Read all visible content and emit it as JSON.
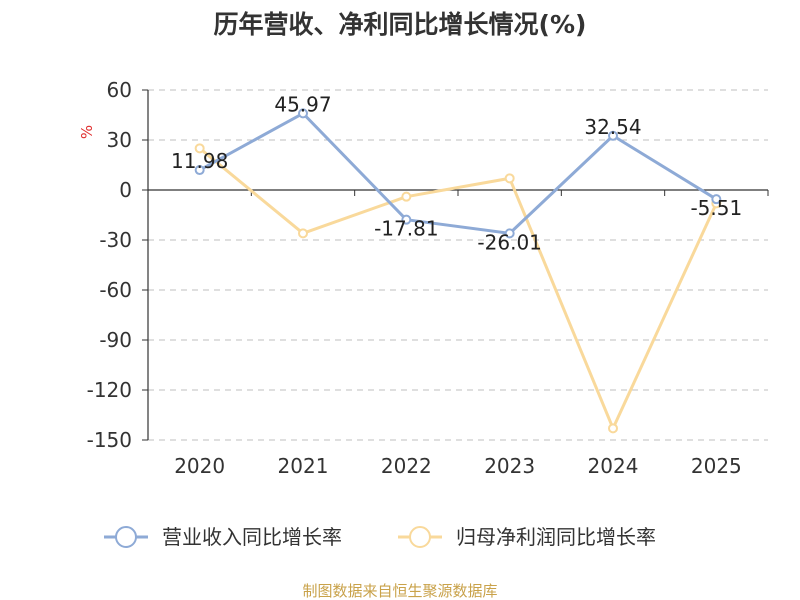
{
  "chart_data": {
    "type": "line",
    "title": "历年营收、净利同比增长情况(%)",
    "ylabel": "%",
    "xlabel": "",
    "categories": [
      "2020",
      "2021",
      "2022",
      "2023",
      "2024",
      "2025"
    ],
    "ylim": [
      -150,
      60
    ],
    "yticks": [
      60,
      30,
      0,
      -30,
      -60,
      -90,
      -120,
      -150
    ],
    "grid": true,
    "legend_position": "bottom",
    "series": [
      {
        "name": "营业收入同比增长率",
        "color": "#8eaad6",
        "values": [
          11.98,
          45.97,
          -17.81,
          -26.01,
          32.54,
          -5.51
        ],
        "data_labels": [
          "11.98",
          "45.97",
          "-17.81",
          "-26.01",
          "32.54",
          "-5.51"
        ]
      },
      {
        "name": "归母净利润同比增长率",
        "color": "#f9d99b",
        "values": [
          25,
          -26,
          -4,
          7,
          -143,
          -8
        ]
      }
    ]
  },
  "source": "制图数据来自恒生聚源数据库",
  "colors": {
    "title": "#333333",
    "axis": "#333333",
    "grid": "#bfbfbf",
    "ylabel": "#e03030",
    "source": "#c9a24a"
  }
}
